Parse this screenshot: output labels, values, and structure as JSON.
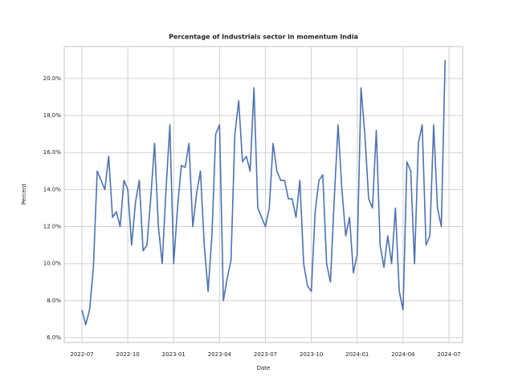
{
  "chart_data": {
    "type": "line",
    "title": "Percentage of Industrials sector in momentum India",
    "xlabel": "Date",
    "ylabel": "Percent",
    "x": [
      "2022-07",
      null,
      null,
      null,
      null,
      null,
      null,
      null,
      null,
      null,
      null,
      null,
      "2022-10",
      null,
      null,
      null,
      null,
      null,
      null,
      null,
      null,
      null,
      null,
      null,
      "2023-01",
      null,
      null,
      null,
      null,
      null,
      null,
      null,
      null,
      null,
      null,
      null,
      "2023-04",
      null,
      null,
      null,
      null,
      null,
      null,
      null,
      null,
      null,
      null,
      null,
      "2023-07",
      null,
      null,
      null,
      null,
      null,
      null,
      null,
      null,
      null,
      null,
      null,
      "2023-10",
      null,
      null,
      null,
      null,
      null,
      null,
      null,
      null,
      null,
      null,
      null,
      "2024-01",
      null,
      null,
      null,
      null,
      null,
      null,
      null,
      null,
      null,
      null,
      null,
      "2024-04",
      null,
      null,
      null,
      null,
      null,
      null,
      null,
      null,
      null,
      null,
      null,
      "2024-07"
    ],
    "series": [
      {
        "name": "Industrials",
        "color": "#4c72b0",
        "values": [
          7.5,
          6.7,
          7.5,
          9.8,
          15.0,
          14.5,
          14.0,
          15.8,
          12.5,
          12.8,
          12.0,
          14.5,
          14.0,
          11.0,
          13.3,
          14.5,
          10.7,
          11.0,
          13.5,
          16.5,
          12.0,
          10.0,
          14.0,
          17.5,
          10.0,
          13.0,
          15.3,
          15.2,
          16.5,
          12.0,
          13.8,
          15.0,
          11.0,
          8.5,
          11.5,
          17.0,
          17.5,
          8.0,
          9.2,
          10.2,
          17.0,
          18.8,
          15.5,
          15.8,
          15.0,
          19.5,
          13.0,
          12.5,
          12.0,
          13.0,
          16.5,
          15.0,
          14.5,
          14.5,
          13.5,
          13.5,
          12.5,
          14.5,
          10.0,
          8.8,
          8.5,
          12.8,
          14.5,
          14.8,
          10.0,
          9.0,
          13.5,
          17.5,
          14.0,
          11.5,
          12.5,
          9.5,
          10.5,
          19.5,
          17.0,
          13.5,
          13.0,
          17.2,
          11.0,
          9.8,
          11.5,
          10.0,
          13.0,
          8.5,
          7.5,
          15.5,
          15.0,
          10.0,
          16.5,
          17.5,
          11.0,
          11.5,
          17.5,
          13.0,
          12.0,
          21.0,
          null
        ]
      }
    ],
    "ylim": [
      5.74,
      21.73
    ],
    "yticks": [
      {
        "value": 6,
        "label": "6.0%"
      },
      {
        "value": 8,
        "label": "8.0%"
      },
      {
        "value": 10,
        "label": "10.0%"
      },
      {
        "value": 12,
        "label": "12.0%"
      },
      {
        "value": 14,
        "label": "14.0%"
      },
      {
        "value": 16,
        "label": "16.0%"
      },
      {
        "value": 18,
        "label": "18.0%"
      },
      {
        "value": 20,
        "label": "20.0%"
      }
    ],
    "grid": true
  }
}
